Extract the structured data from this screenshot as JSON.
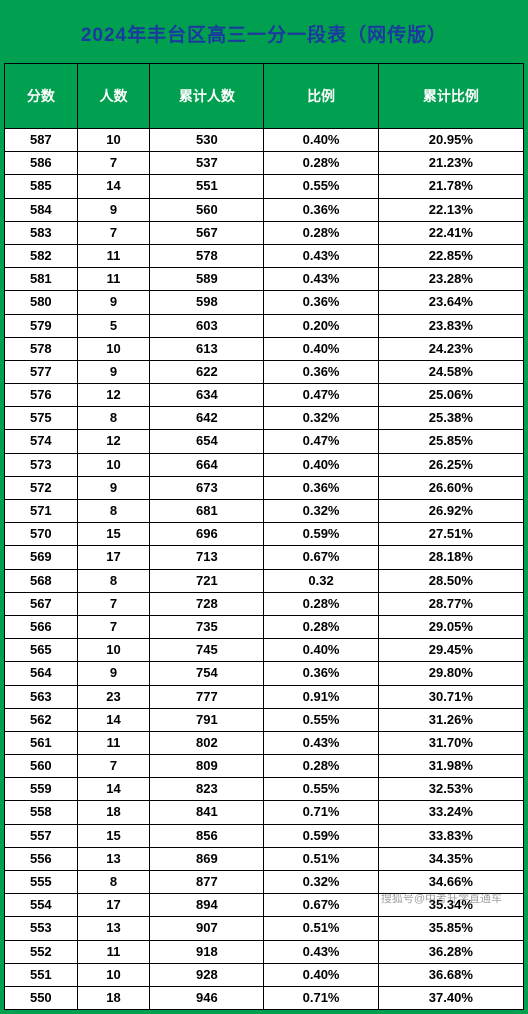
{
  "title": "2024年丰台区高三一分一段表（网传版）",
  "title_color": "#1a3a9e",
  "header_bg": "#00a050",
  "header_text_color": "#ffffff",
  "cell_bg": "#ffffff",
  "border_color": "#000000",
  "columns": [
    "分数",
    "人数",
    "累计人数",
    "比例",
    "累计比例"
  ],
  "rows": [
    [
      "587",
      "10",
      "530",
      "0.40%",
      "20.95%"
    ],
    [
      "586",
      "7",
      "537",
      "0.28%",
      "21.23%"
    ],
    [
      "585",
      "14",
      "551",
      "0.55%",
      "21.78%"
    ],
    [
      "584",
      "9",
      "560",
      "0.36%",
      "22.13%"
    ],
    [
      "583",
      "7",
      "567",
      "0.28%",
      "22.41%"
    ],
    [
      "582",
      "11",
      "578",
      "0.43%",
      "22.85%"
    ],
    [
      "581",
      "11",
      "589",
      "0.43%",
      "23.28%"
    ],
    [
      "580",
      "9",
      "598",
      "0.36%",
      "23.64%"
    ],
    [
      "579",
      "5",
      "603",
      "0.20%",
      "23.83%"
    ],
    [
      "578",
      "10",
      "613",
      "0.40%",
      "24.23%"
    ],
    [
      "577",
      "9",
      "622",
      "0.36%",
      "24.58%"
    ],
    [
      "576",
      "12",
      "634",
      "0.47%",
      "25.06%"
    ],
    [
      "575",
      "8",
      "642",
      "0.32%",
      "25.38%"
    ],
    [
      "574",
      "12",
      "654",
      "0.47%",
      "25.85%"
    ],
    [
      "573",
      "10",
      "664",
      "0.40%",
      "26.25%"
    ],
    [
      "572",
      "9",
      "673",
      "0.36%",
      "26.60%"
    ],
    [
      "571",
      "8",
      "681",
      "0.32%",
      "26.92%"
    ],
    [
      "570",
      "15",
      "696",
      "0.59%",
      "27.51%"
    ],
    [
      "569",
      "17",
      "713",
      "0.67%",
      "28.18%"
    ],
    [
      "568",
      "8",
      "721",
      "0.32",
      "28.50%"
    ],
    [
      "567",
      "7",
      "728",
      "0.28%",
      "28.77%"
    ],
    [
      "566",
      "7",
      "735",
      "0.28%",
      "29.05%"
    ],
    [
      "565",
      "10",
      "745",
      "0.40%",
      "29.45%"
    ],
    [
      "564",
      "9",
      "754",
      "0.36%",
      "29.80%"
    ],
    [
      "563",
      "23",
      "777",
      "0.91%",
      "30.71%"
    ],
    [
      "562",
      "14",
      "791",
      "0.55%",
      "31.26%"
    ],
    [
      "561",
      "11",
      "802",
      "0.43%",
      "31.70%"
    ],
    [
      "560",
      "7",
      "809",
      "0.28%",
      "31.98%"
    ],
    [
      "559",
      "14",
      "823",
      "0.55%",
      "32.53%"
    ],
    [
      "558",
      "18",
      "841",
      "0.71%",
      "33.24%"
    ],
    [
      "557",
      "15",
      "856",
      "0.59%",
      "33.83%"
    ],
    [
      "556",
      "13",
      "869",
      "0.51%",
      "34.35%"
    ],
    [
      "555",
      "8",
      "877",
      "0.32%",
      "34.66%"
    ],
    [
      "554",
      "17",
      "894",
      "0.67%",
      "35.34%"
    ],
    [
      "553",
      "13",
      "907",
      "0.51%",
      "35.85%"
    ],
    [
      "552",
      "11",
      "918",
      "0.43%",
      "36.28%"
    ],
    [
      "551",
      "10",
      "928",
      "0.40%",
      "36.68%"
    ],
    [
      "550",
      "18",
      "946",
      "0.71%",
      "37.40%"
    ]
  ],
  "watermark": "搜狐号@中考升学直通车"
}
